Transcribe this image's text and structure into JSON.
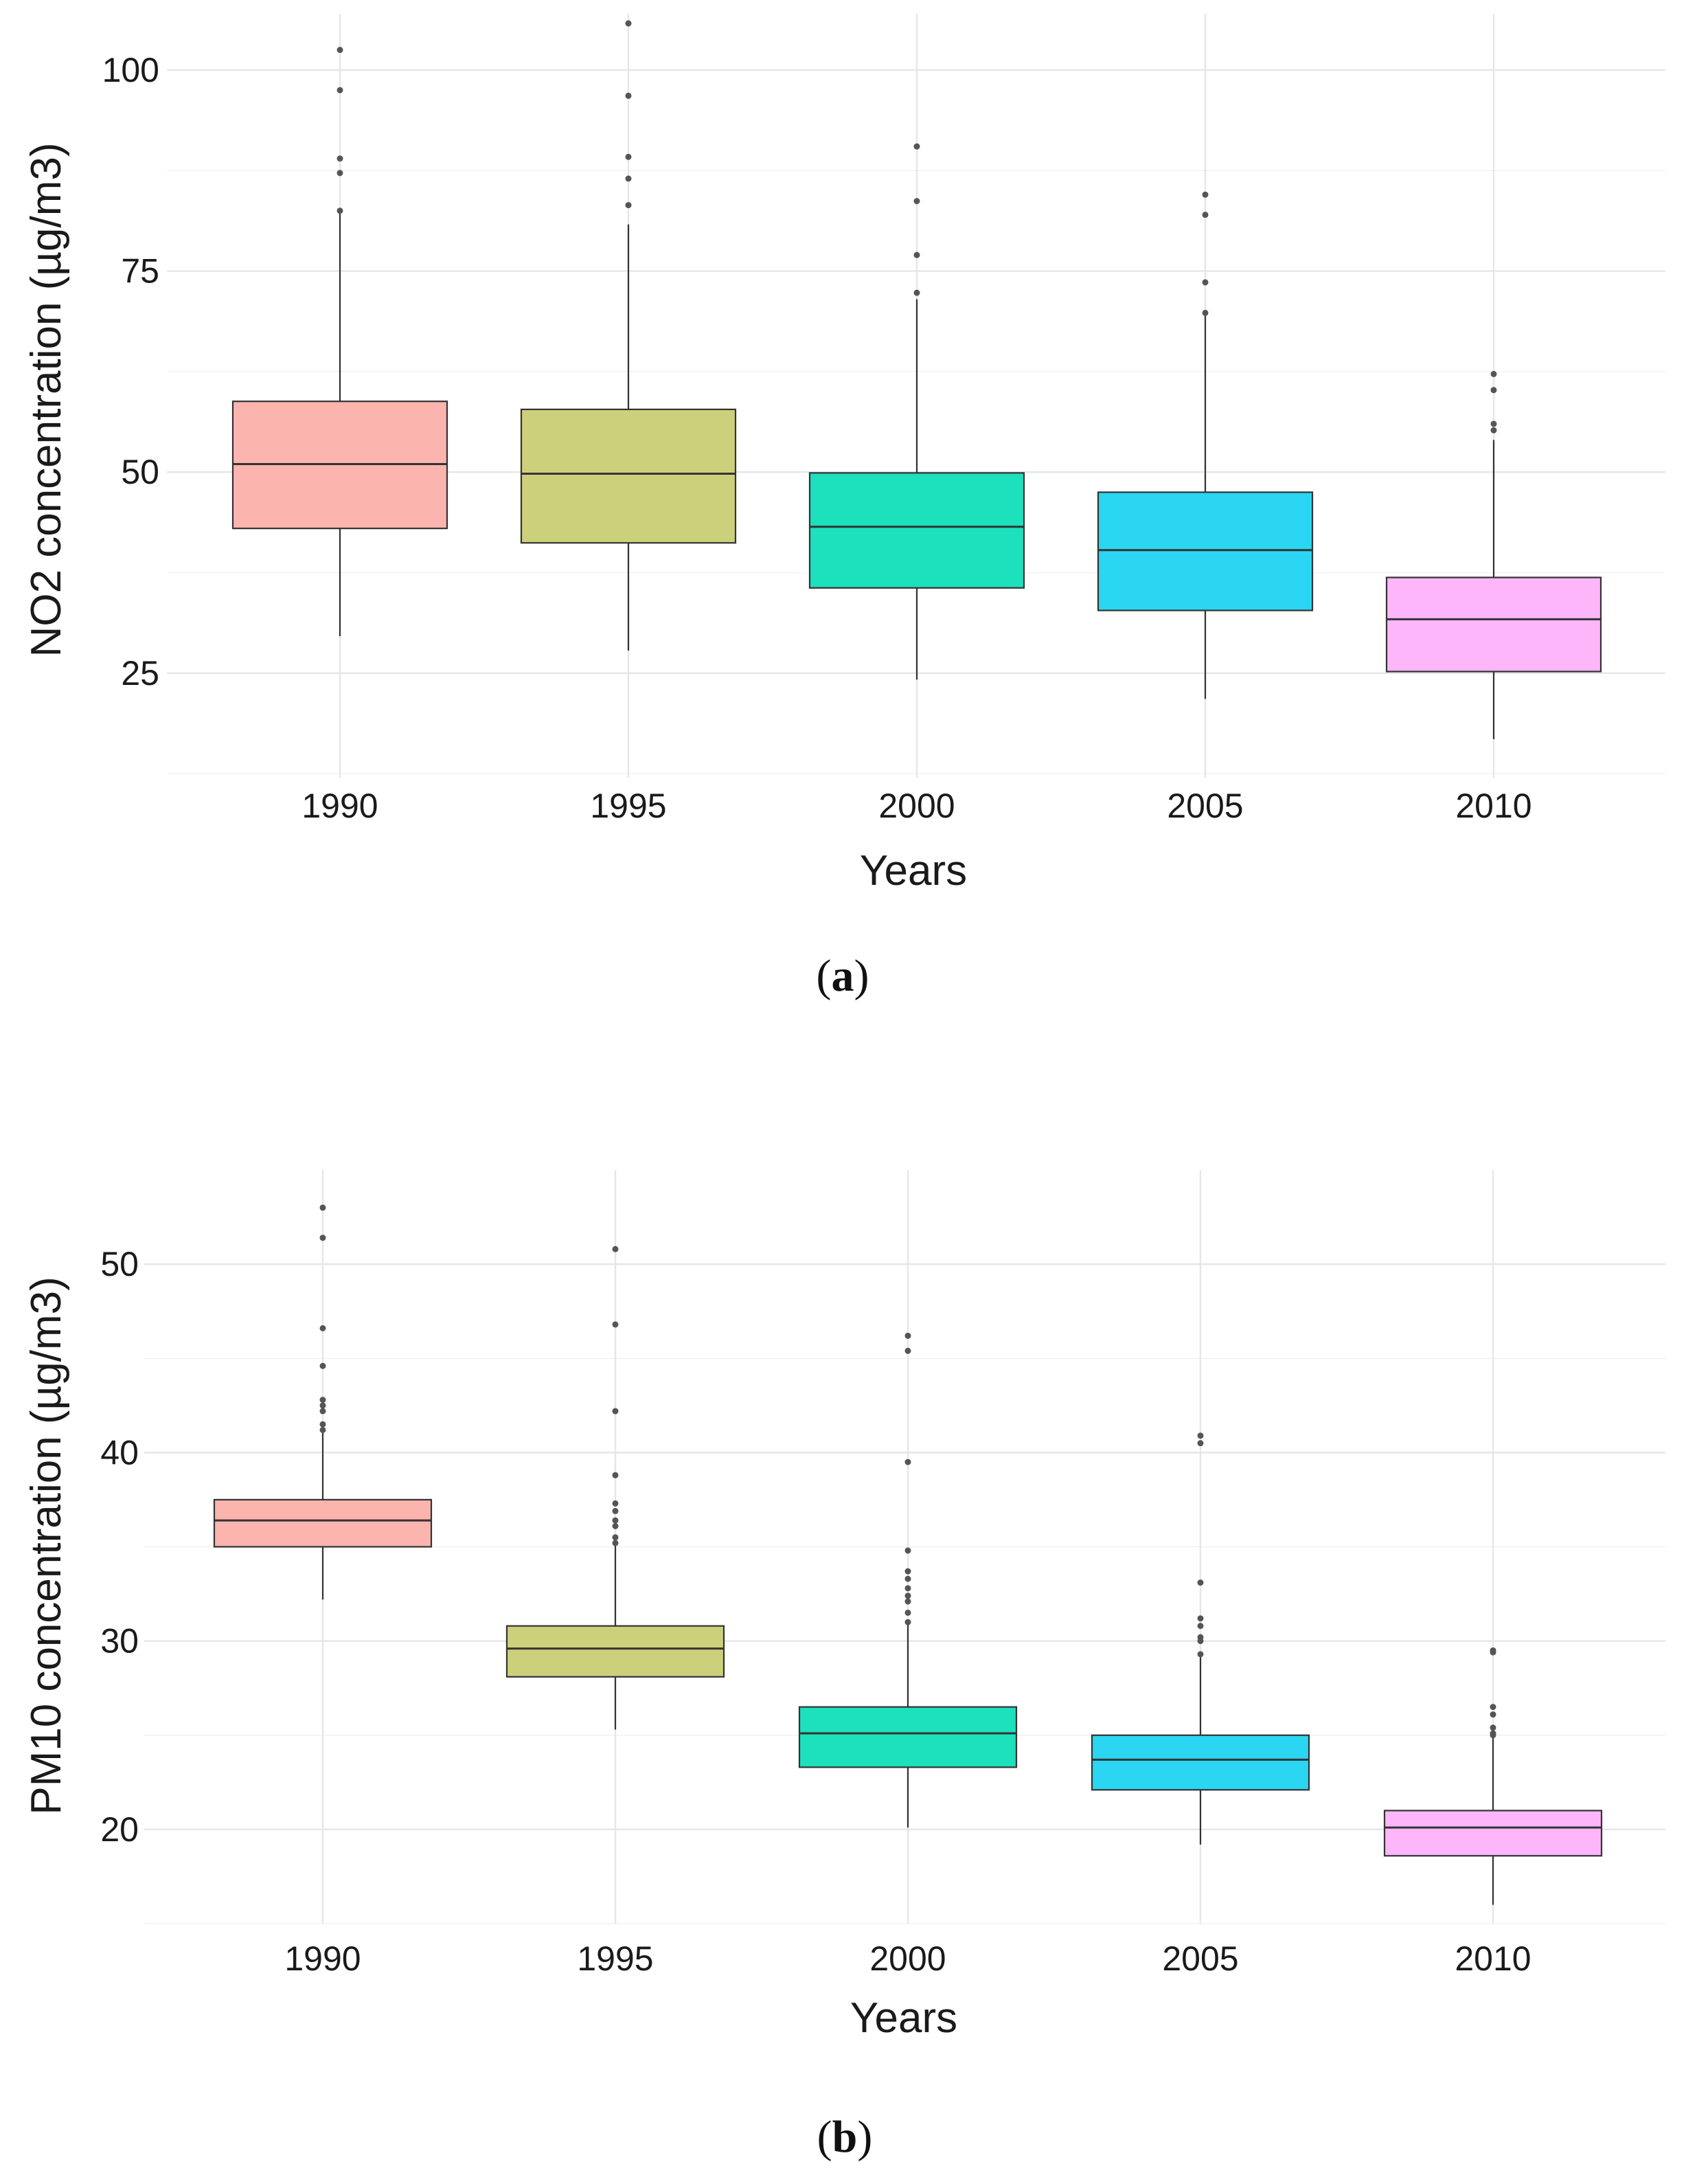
{
  "chart_data": [
    {
      "id": "no2",
      "type": "box",
      "panel_label": "a",
      "xlabel": "Years",
      "ylabel": "NO2 concentration (µg/m3)",
      "ylim": [
        12,
        107
      ],
      "yticks": [
        25,
        50,
        75,
        100
      ],
      "yminor": [
        37.5,
        62.5,
        87.5
      ],
      "categories": [
        "1990",
        "1995",
        "2000",
        "2005",
        "2010"
      ],
      "colors": [
        "#fbb4ae",
        "#cdd07a",
        "#1de0bd",
        "#2ad6f2",
        "#fdb6f9"
      ],
      "series": [
        {
          "category": "1990",
          "whisker_low": 29.6,
          "q1": 43.0,
          "median": 51.0,
          "q3": 58.8,
          "whisker_high": 82.5,
          "outliers": [
            102.5,
            97.5,
            89.0,
            87.2,
            82.5
          ]
        },
        {
          "category": "1995",
          "whisker_low": 27.8,
          "q1": 41.2,
          "median": 49.8,
          "q3": 57.8,
          "whisker_high": 80.8,
          "outliers": [
            105.8,
            96.8,
            89.2,
            86.5,
            83.2
          ]
        },
        {
          "category": "2000",
          "whisker_low": 24.2,
          "q1": 35.6,
          "median": 43.2,
          "q3": 49.9,
          "whisker_high": 71.5,
          "outliers": [
            90.5,
            83.7,
            77.0,
            72.3
          ]
        },
        {
          "category": "2005",
          "whisker_low": 21.8,
          "q1": 32.8,
          "median": 40.3,
          "q3": 47.5,
          "whisker_high": 69.7,
          "outliers": [
            84.5,
            82.0,
            73.6,
            69.8
          ]
        },
        {
          "category": "2010",
          "whisker_low": 16.8,
          "q1": 25.2,
          "median": 31.7,
          "q3": 36.9,
          "whisker_high": 54.0,
          "outliers": [
            62.2,
            60.2,
            56.0,
            55.2
          ]
        }
      ]
    },
    {
      "id": "pm10",
      "type": "box",
      "panel_label": "b",
      "xlabel": "Years",
      "ylabel": "PM10 concentration (µg/m3)",
      "ylim": [
        15,
        55
      ],
      "yticks": [
        20,
        30,
        40,
        50
      ],
      "yminor": [
        25,
        35,
        45
      ],
      "categories": [
        "1990",
        "1995",
        "2000",
        "2005",
        "2010"
      ],
      "colors": [
        "#fbb4ae",
        "#cdd07a",
        "#1de0bd",
        "#2ad6f2",
        "#fdb6f9"
      ],
      "series": [
        {
          "category": "1990",
          "whisker_low": 32.2,
          "q1": 35.0,
          "median": 36.4,
          "q3": 37.5,
          "whisker_high": 41.2,
          "outliers": [
            53.0,
            51.4,
            46.6,
            44.6,
            42.8,
            42.5,
            42.2,
            41.5,
            41.2
          ]
        },
        {
          "category": "1995",
          "whisker_low": 25.3,
          "q1": 28.1,
          "median": 29.6,
          "q3": 30.8,
          "whisker_high": 35.2,
          "outliers": [
            50.8,
            46.8,
            42.2,
            38.8,
            37.3,
            36.9,
            36.4,
            36.1,
            35.5,
            35.2
          ]
        },
        {
          "category": "2000",
          "whisker_low": 20.1,
          "q1": 23.3,
          "median": 25.1,
          "q3": 26.5,
          "whisker_high": 31.0,
          "outliers": [
            46.2,
            45.4,
            39.5,
            34.8,
            33.7,
            33.3,
            32.8,
            32.4,
            32.1,
            31.5,
            31.0
          ]
        },
        {
          "category": "2005",
          "whisker_low": 19.2,
          "q1": 22.1,
          "median": 23.7,
          "q3": 25.0,
          "whisker_high": 29.2,
          "outliers": [
            40.9,
            40.5,
            33.1,
            31.2,
            30.8,
            30.2,
            30.0,
            29.3
          ]
        },
        {
          "category": "2010",
          "whisker_low": 16.0,
          "q1": 18.6,
          "median": 20.1,
          "q3": 21.0,
          "whisker_high": 25.0,
          "outliers": [
            29.5,
            29.4,
            26.5,
            26.1,
            25.4,
            25.1,
            25.0
          ]
        }
      ]
    }
  ]
}
